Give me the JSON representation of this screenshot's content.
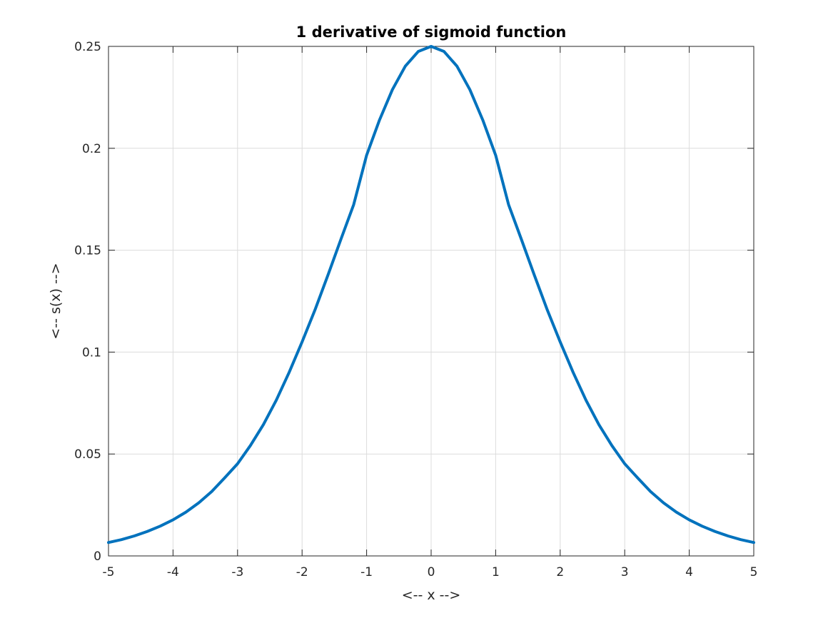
{
  "chart_data": {
    "type": "line",
    "title": "1 derivative of sigmoid function",
    "xlabel": "<-- x -->",
    "ylabel": "<-- s(x) -->",
    "xlim": [
      -5,
      5
    ],
    "ylim": [
      0,
      0.25
    ],
    "xticks": [
      "-5",
      "-4",
      "-3",
      "-2",
      "-1",
      "0",
      "1",
      "2",
      "3",
      "4",
      "5"
    ],
    "yticks": [
      "0",
      "0.05",
      "0.1",
      "0.15",
      "0.2",
      "0.25"
    ],
    "grid": true,
    "line_color": "#0072BD",
    "series": [
      {
        "x": [
          -5,
          -4.8,
          -4.6,
          -4.4,
          -4.2,
          -4,
          -3.8,
          -3.6,
          -3.4,
          -3.2,
          -3,
          -2.8,
          -2.6,
          -2.4,
          -2.2,
          -2,
          -1.8,
          -1.6,
          -1.4,
          -1.2,
          -1,
          -0.8,
          -0.6,
          -0.4,
          -0.2,
          0,
          0.2,
          0.4,
          0.6,
          0.8,
          1,
          1.2,
          1.4,
          1.6,
          1.8,
          2,
          2.2,
          2.4,
          2.6,
          2.8,
          3,
          3.2,
          3.4,
          3.6,
          3.8,
          4,
          4.2,
          4.4,
          4.6,
          4.8,
          5
        ],
        "values": [
          0.0066,
          0.008,
          0.0098,
          0.012,
          0.0146,
          0.0177,
          0.0215,
          0.0261,
          0.0316,
          0.0383,
          0.0452,
          0.0542,
          0.0644,
          0.0764,
          0.0901,
          0.105,
          0.1207,
          0.1377,
          0.1552,
          0.1724,
          0.1966,
          0.2139,
          0.2288,
          0.2403,
          0.2475,
          0.25,
          0.2475,
          0.2403,
          0.2288,
          0.2139,
          0.1966,
          0.1724,
          0.1552,
          0.1377,
          0.1207,
          0.105,
          0.0901,
          0.0764,
          0.0644,
          0.0542,
          0.0452,
          0.0383,
          0.0316,
          0.0261,
          0.0215,
          0.0177,
          0.0146,
          0.012,
          0.0098,
          0.008,
          0.0066
        ]
      }
    ]
  }
}
